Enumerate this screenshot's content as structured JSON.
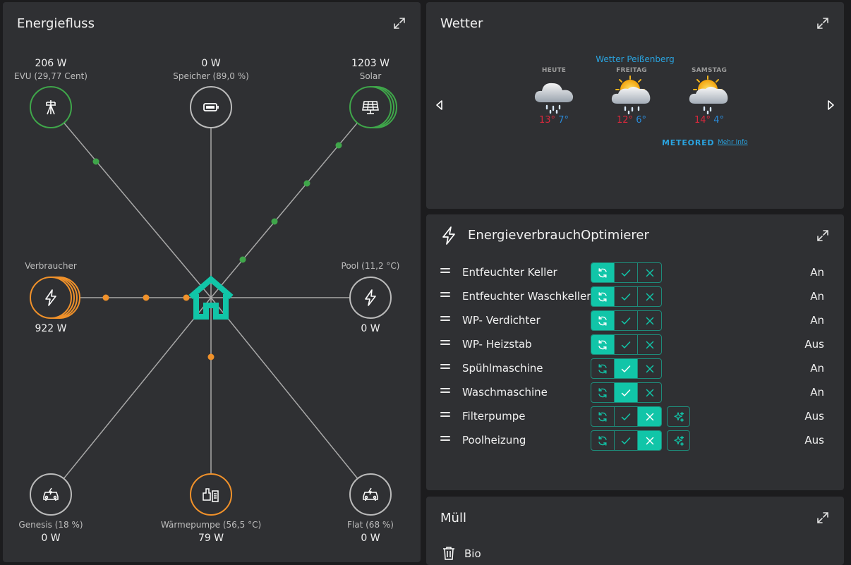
{
  "energy": {
    "title": "Energiefluss",
    "nodes": {
      "evu": {
        "value": "206 W",
        "label": "EVU (29,77 Cent)"
      },
      "storage": {
        "value": "0 W",
        "label": "Speicher (89,0 %)"
      },
      "solar": {
        "value": "1203 W",
        "label": "Solar"
      },
      "consumer": {
        "value": "922 W",
        "label": "Verbraucher"
      },
      "pool": {
        "value": "0 W",
        "label": "Pool (11,2 °C)"
      },
      "genesis": {
        "value": "0 W",
        "label": "Genesis (18 %)"
      },
      "heatpump": {
        "value": "79 W",
        "label": "Wärmepumpe (56,5 °C)"
      },
      "flat": {
        "value": "0 W",
        "label": "Flat (68 %)"
      }
    },
    "colors": {
      "green": "#3fa64a",
      "orange": "#f0912a",
      "teal": "#11c5a8",
      "line": "#a8a8a8"
    }
  },
  "weather": {
    "title": "Wetter",
    "location": "Wetter Peißenberg",
    "days": [
      {
        "name": "HEUTE",
        "max": "13°",
        "min": "7°",
        "icon": "cloud-rain-icon"
      },
      {
        "name": "FREITAG",
        "max": "12°",
        "min": "6°",
        "icon": "sun-cloud-rain-icon"
      },
      {
        "name": "SAMSTAG",
        "max": "14°",
        "min": "4°",
        "icon": "sun-cloud-rain-icon"
      }
    ],
    "brand": "METEORED",
    "more": "Mehr Info"
  },
  "optimizer": {
    "title": "EnergieverbrauchOptimierer",
    "devices": [
      {
        "name": "Entfeuchter Keller",
        "mode": "auto",
        "state": "An",
        "magic": false
      },
      {
        "name": "Entfeuchter Waschkeller",
        "mode": "auto",
        "state": "An",
        "magic": false
      },
      {
        "name": "WP- Verdichter",
        "mode": "auto",
        "state": "An",
        "magic": false
      },
      {
        "name": "WP- Heizstab",
        "mode": "auto",
        "state": "Aus",
        "magic": false
      },
      {
        "name": "Spühlmaschine",
        "mode": "on",
        "state": "An",
        "magic": false
      },
      {
        "name": "Waschmaschine",
        "mode": "on",
        "state": "An",
        "magic": false
      },
      {
        "name": "Filterpumpe",
        "mode": "off",
        "state": "Aus",
        "magic": true
      },
      {
        "name": "Poolheizung",
        "mode": "off",
        "state": "Aus",
        "magic": true
      }
    ]
  },
  "waste": {
    "title": "Müll",
    "items": [
      {
        "name": "Bio"
      }
    ]
  }
}
